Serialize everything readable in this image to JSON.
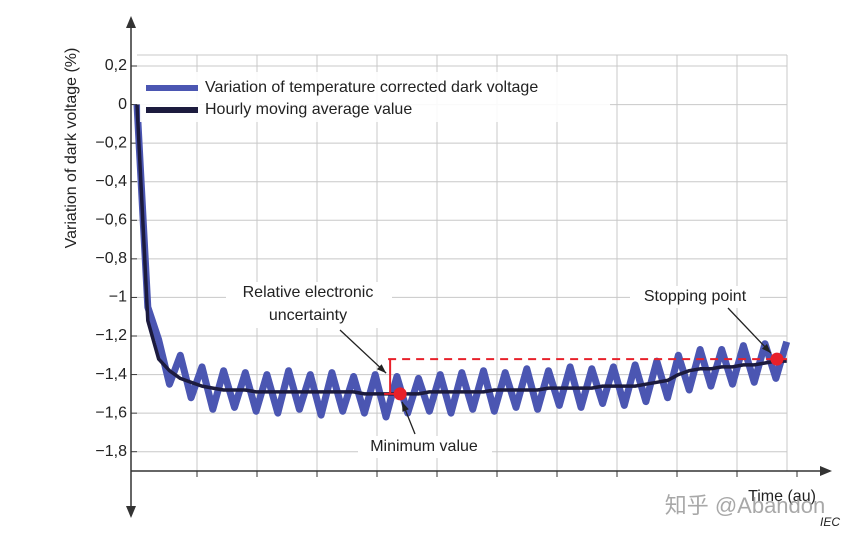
{
  "chart_data": {
    "type": "line",
    "y_label": "Variation of dark voltage  (%)",
    "x_label": "Time  (au)",
    "source": "IEC",
    "watermark": "知乎 @Abandon",
    "x": [
      0,
      1,
      2,
      3,
      4,
      5,
      6,
      7,
      8,
      9,
      10,
      11,
      12,
      13,
      14,
      15,
      16,
      17,
      18,
      19,
      20,
      21,
      22,
      23,
      24,
      25,
      26,
      27,
      28,
      29,
      30,
      31,
      32,
      33,
      34,
      35,
      36,
      37,
      38,
      39,
      40,
      41,
      42,
      43,
      44,
      45,
      46,
      47,
      48,
      49,
      50,
      51,
      52,
      53,
      54,
      55,
      56,
      57,
      58,
      59,
      60
    ],
    "xlim": [
      0,
      64
    ],
    "ylim": [
      -1.9,
      0.2
    ],
    "yticks": [
      {
        "value": 0.2,
        "label": "0,2"
      },
      0,
      {
        "value": -0.2,
        "label": "−0,2"
      },
      {
        "value": -0.4,
        "label": "−0,4"
      },
      {
        "value": -0.6,
        "label": "−0,6"
      },
      {
        "value": -0.8,
        "label": "−0,8"
      },
      {
        "value": -1,
        "label": "−1"
      },
      {
        "value": -1.2,
        "label": "−1,2"
      },
      {
        "value": -1.4,
        "label": "−1,4"
      },
      {
        "value": -1.6,
        "label": "−1,6"
      },
      {
        "value": -1.8,
        "label": "−1,8"
      }
    ],
    "grid": true,
    "legend": "top-left",
    "series": [
      {
        "name": "Variation of temperature corrected dark voltage",
        "color": "#4b56b2",
        "values": [
          0,
          -1.05,
          -1.22,
          -1.45,
          -1.3,
          -1.52,
          -1.36,
          -1.58,
          -1.38,
          -1.57,
          -1.39,
          -1.59,
          -1.4,
          -1.6,
          -1.38,
          -1.58,
          -1.4,
          -1.61,
          -1.39,
          -1.59,
          -1.41,
          -1.6,
          -1.4,
          -1.62,
          -1.41,
          -1.6,
          -1.42,
          -1.59,
          -1.4,
          -1.6,
          -1.39,
          -1.58,
          -1.38,
          -1.59,
          -1.39,
          -1.57,
          -1.37,
          -1.58,
          -1.38,
          -1.56,
          -1.36,
          -1.57,
          -1.37,
          -1.55,
          -1.36,
          -1.56,
          -1.35,
          -1.54,
          -1.33,
          -1.52,
          -1.3,
          -1.48,
          -1.27,
          -1.46,
          -1.27,
          -1.45,
          -1.25,
          -1.44,
          -1.24,
          -1.42,
          -1.23
        ]
      },
      {
        "name": "Hourly moving average value",
        "color": "#1c1b3e",
        "values": [
          0,
          -1.12,
          -1.32,
          -1.38,
          -1.42,
          -1.44,
          -1.46,
          -1.47,
          -1.48,
          -1.48,
          -1.48,
          -1.49,
          -1.49,
          -1.49,
          -1.49,
          -1.49,
          -1.49,
          -1.49,
          -1.49,
          -1.49,
          -1.49,
          -1.5,
          -1.5,
          -1.5,
          -1.5,
          -1.5,
          -1.5,
          -1.49,
          -1.49,
          -1.49,
          -1.49,
          -1.49,
          -1.49,
          -1.48,
          -1.48,
          -1.48,
          -1.48,
          -1.48,
          -1.47,
          -1.47,
          -1.47,
          -1.47,
          -1.47,
          -1.46,
          -1.46,
          -1.46,
          -1.46,
          -1.45,
          -1.44,
          -1.43,
          -1.4,
          -1.38,
          -1.37,
          -1.37,
          -1.36,
          -1.36,
          -1.35,
          -1.35,
          -1.34,
          -1.33,
          -1.33
        ]
      }
    ],
    "markers": [
      {
        "label": "Minimum value",
        "x": 24.3,
        "y": -1.5,
        "color": "#e8202a"
      },
      {
        "label": "Stopping point",
        "x": 59.1,
        "y": -1.32,
        "color": "#e8202a"
      }
    ],
    "uncertainty_label": [
      "Relative electronic",
      "uncertainty"
    ]
  }
}
